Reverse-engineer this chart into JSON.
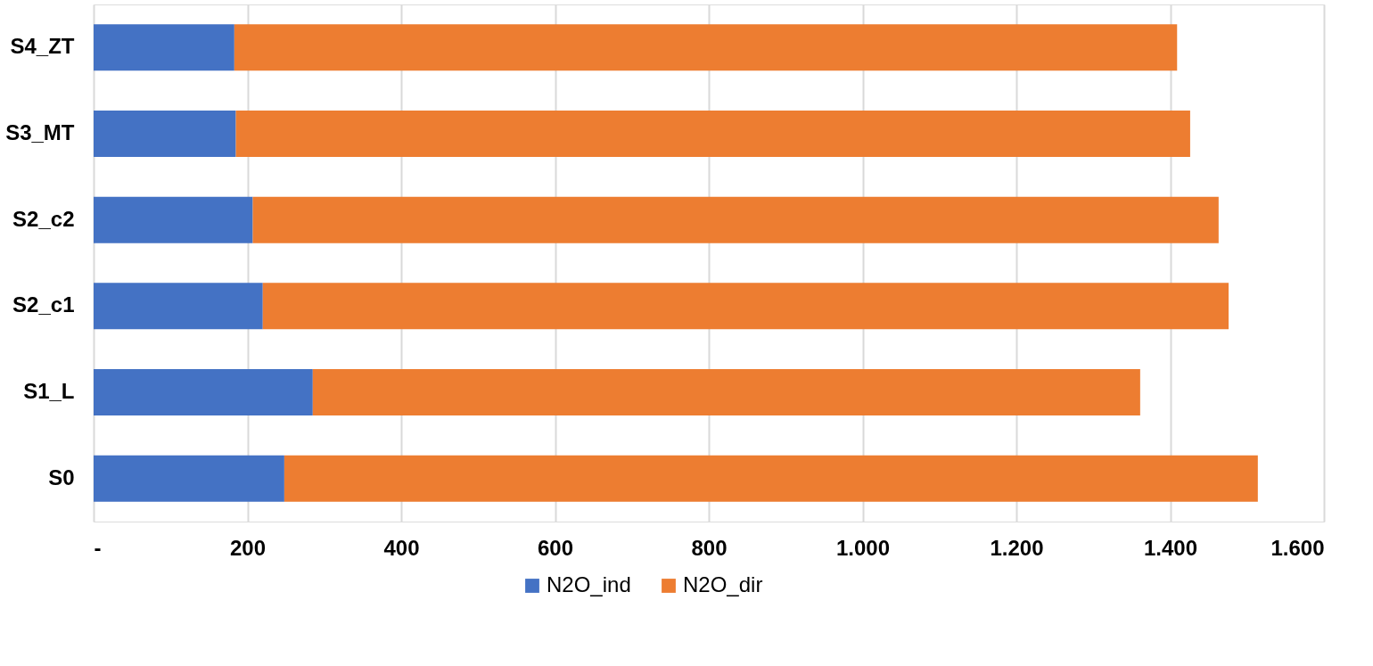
{
  "chart_data": {
    "type": "bar",
    "orientation": "horizontal",
    "stacked": true,
    "categories": [
      "S4_ZT",
      "S3_MT",
      "S2_c2",
      "S2_c1",
      "S1_L",
      "S0"
    ],
    "series": [
      {
        "name": "N2O_ind",
        "color": "#4472c4",
        "values": [
          183,
          185,
          207,
          220,
          285,
          248
        ]
      },
      {
        "name": "N2O_dir",
        "color": "#ed7d31",
        "values": [
          1226,
          1241,
          1256,
          1256,
          1076,
          1266
        ]
      }
    ],
    "xlim": [
      0,
      1600
    ],
    "xticks": [
      {
        "value": 0,
        "label": "-"
      },
      200,
      400,
      600,
      800,
      {
        "value": 1000,
        "label": "1.000"
      },
      {
        "value": 1200,
        "label": "1.200"
      },
      {
        "value": 1400,
        "label": "1.400"
      },
      {
        "value": 1600,
        "label": "1.600"
      }
    ],
    "grid": "x",
    "legend": "bottom"
  }
}
